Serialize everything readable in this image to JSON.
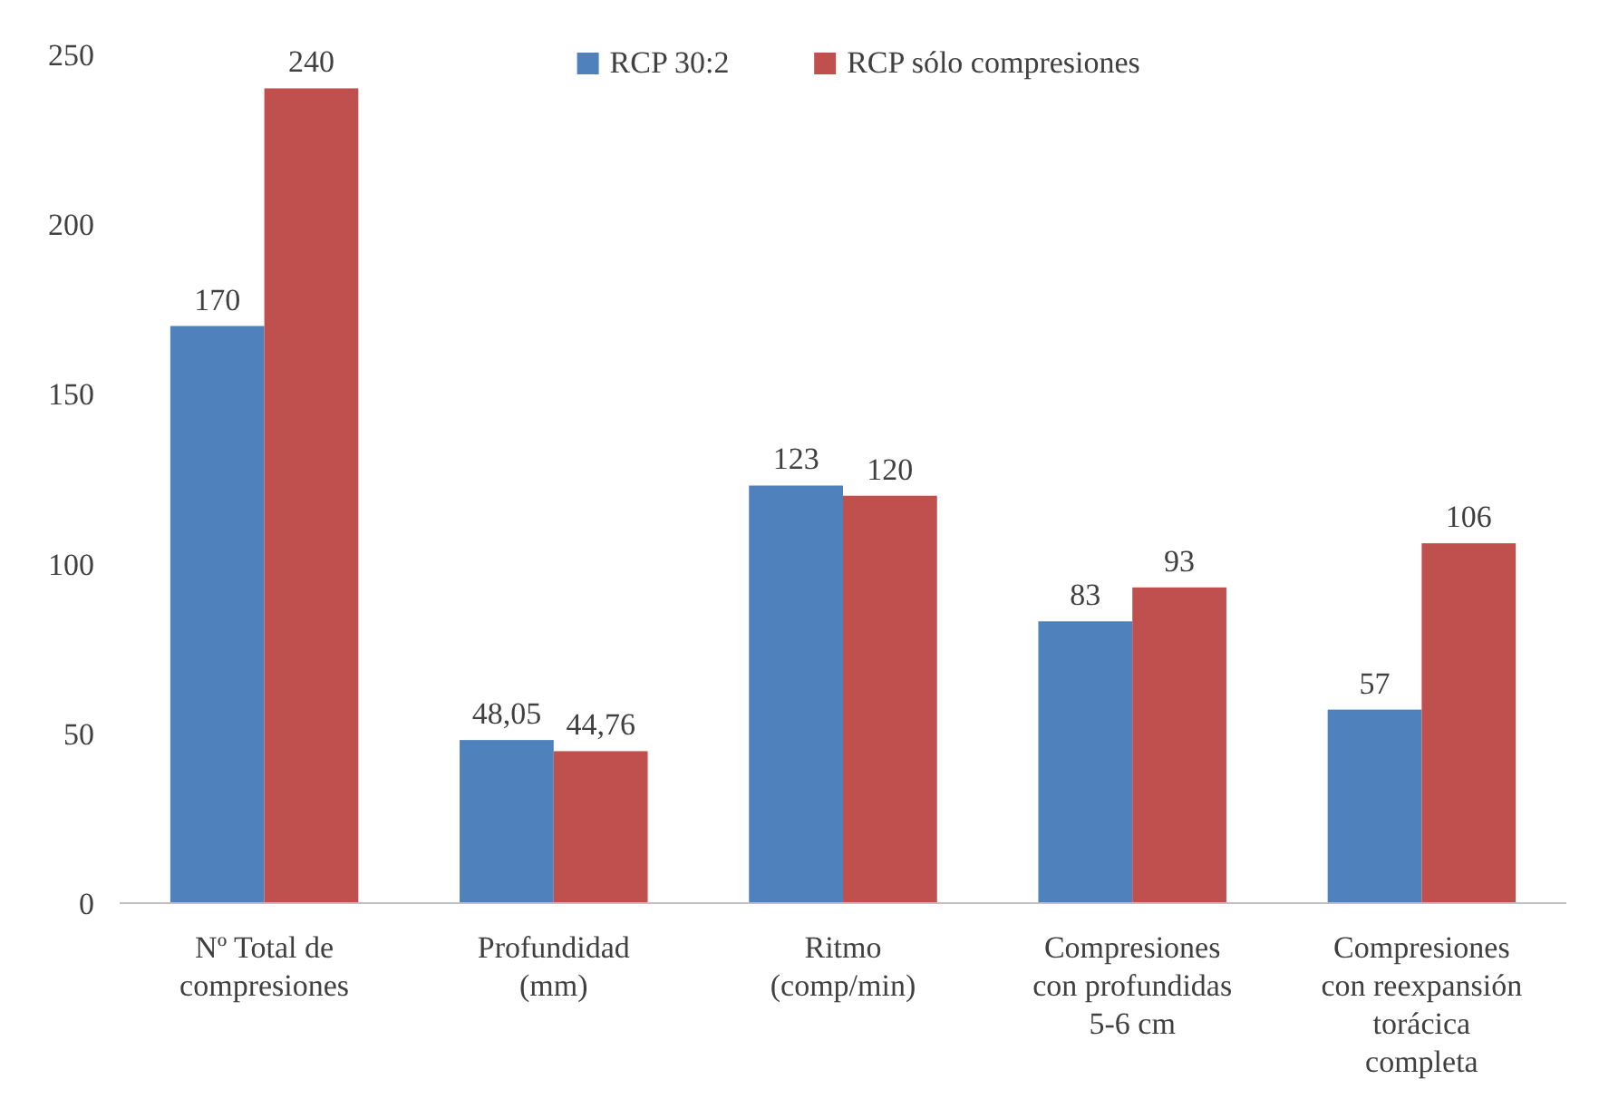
{
  "chart_data": {
    "type": "bar",
    "categories": [
      "Nº Total de compresiones",
      "Profundidad (mm)",
      "Ritmo (comp/min)",
      "Compresiones con profundidas 5-6 cm",
      "Compresiones con reexpansión torácica completa"
    ],
    "series": [
      {
        "name": "RCP 30:2",
        "color": "#4f81bd",
        "values": [
          170,
          48.05,
          123,
          83,
          57
        ],
        "value_labels": [
          "170",
          "48,05",
          "123",
          "83",
          "57"
        ]
      },
      {
        "name": "RCP sólo compresiones",
        "color": "#c0504d",
        "values": [
          240,
          44.76,
          120,
          93,
          106
        ],
        "value_labels": [
          "240",
          "44,76",
          "120",
          "93",
          "106"
        ]
      }
    ],
    "ylim": [
      0,
      250
    ],
    "yticks": [
      0,
      50,
      100,
      150,
      200,
      250
    ],
    "grid": false,
    "legend": "top"
  }
}
